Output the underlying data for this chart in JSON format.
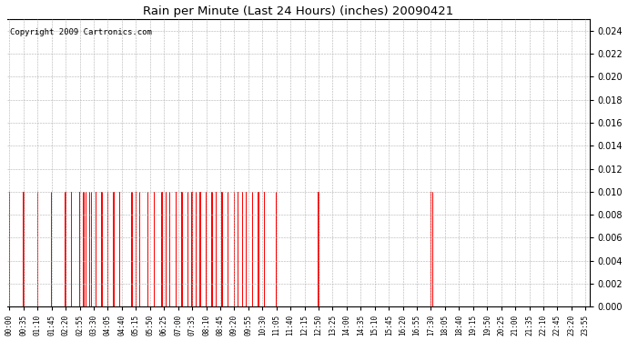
{
  "title": "Rain per Minute (Last 24 Hours) (inches) 20090421",
  "copyright": "Copyright 2009 Cartronics.com",
  "bar_color": "#ff0000",
  "background_color": "#ffffff",
  "ylim": [
    0.0,
    0.025
  ],
  "yticks": [
    0.0,
    0.002,
    0.004,
    0.006,
    0.008,
    0.01,
    0.012,
    0.014,
    0.016,
    0.018,
    0.02,
    0.022,
    0.024
  ],
  "rain_events_min": [
    0,
    35,
    70,
    105,
    140,
    155,
    175,
    185,
    190,
    200,
    205,
    215,
    230,
    245,
    260,
    275,
    305,
    315,
    325,
    345,
    360,
    380,
    390,
    400,
    415,
    430,
    445,
    455,
    465,
    475,
    490,
    505,
    515,
    530,
    545,
    560,
    570,
    580,
    590,
    605,
    620,
    635,
    665,
    770,
    1050,
    1055
  ],
  "rain_values": [
    0.01,
    0.01,
    0.01,
    0.01,
    0.01,
    0.01,
    0.01,
    0.01,
    0.01,
    0.01,
    0.01,
    0.01,
    0.01,
    0.01,
    0.01,
    0.01,
    0.01,
    0.01,
    0.01,
    0.01,
    0.01,
    0.01,
    0.01,
    0.01,
    0.01,
    0.01,
    0.01,
    0.01,
    0.01,
    0.01,
    0.01,
    0.01,
    0.01,
    0.01,
    0.01,
    0.01,
    0.01,
    0.01,
    0.01,
    0.01,
    0.01,
    0.01,
    0.01,
    0.01,
    0.01,
    0.01
  ],
  "x_tick_labels": [
    "00:00",
    "00:35",
    "01:10",
    "01:45",
    "02:20",
    "02:55",
    "03:30",
    "04:05",
    "04:40",
    "05:15",
    "05:50",
    "06:25",
    "07:00",
    "07:35",
    "08:10",
    "08:45",
    "09:20",
    "09:55",
    "10:30",
    "11:05",
    "11:40",
    "12:15",
    "12:50",
    "13:25",
    "14:00",
    "14:35",
    "15:10",
    "15:45",
    "16:20",
    "16:55",
    "17:30",
    "18:05",
    "18:40",
    "19:15",
    "19:50",
    "20:25",
    "21:00",
    "21:35",
    "22:10",
    "22:45",
    "23:20",
    "23:55"
  ],
  "x_tick_minutes": [
    0,
    35,
    70,
    105,
    140,
    175,
    210,
    245,
    280,
    315,
    350,
    385,
    420,
    455,
    490,
    525,
    560,
    595,
    630,
    665,
    700,
    735,
    770,
    805,
    840,
    875,
    910,
    945,
    980,
    1015,
    1050,
    1085,
    1120,
    1155,
    1190,
    1225,
    1260,
    1295,
    1330,
    1365,
    1400,
    1435
  ]
}
